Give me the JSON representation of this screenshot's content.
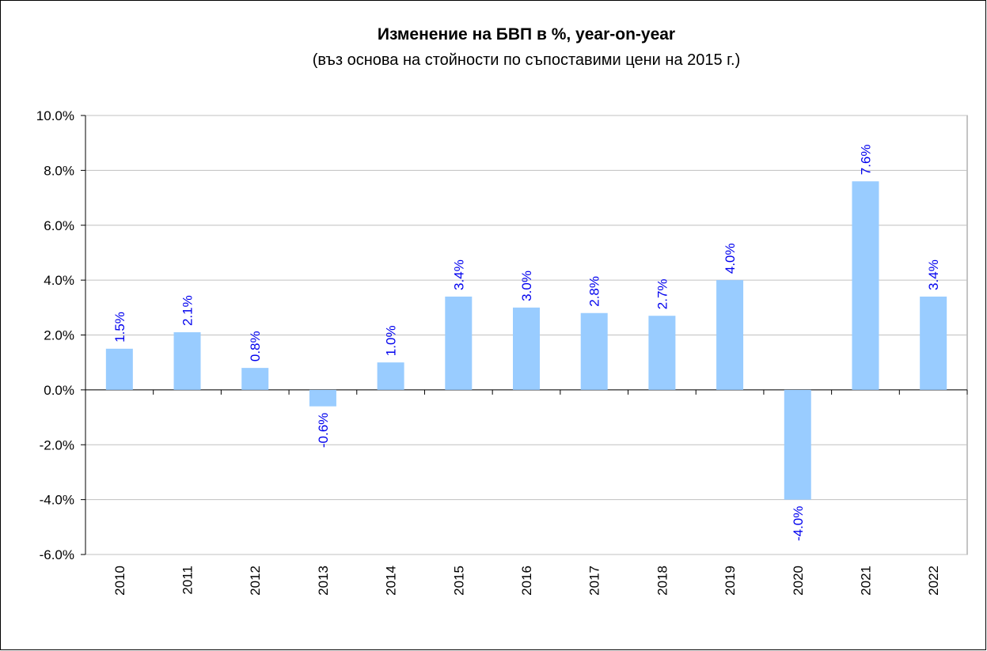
{
  "chart_data": {
    "type": "bar",
    "title": "Изменение на БВП в %, year-on-year",
    "subtitle": "(въз основа на стойности по съпоставими цени на 2015 г.)",
    "categories": [
      "2010",
      "2011",
      "2012",
      "2013",
      "2014",
      "2015",
      "2016",
      "2017",
      "2018",
      "2019",
      "2020",
      "2021",
      "2022"
    ],
    "values": [
      1.5,
      2.1,
      0.8,
      -0.6,
      1.0,
      3.4,
      3.0,
      2.8,
      2.7,
      4.0,
      -4.0,
      7.6,
      3.4
    ],
    "value_labels": [
      "1.5%",
      "2.1%",
      "0.8%",
      "-0.6%",
      "1.0%",
      "3.4%",
      "3.0%",
      "2.8%",
      "2.7%",
      "4.0%",
      "-4.0%",
      "7.6%",
      "3.4%"
    ],
    "color": "#99ccff",
    "ylim": [
      -6,
      10
    ],
    "yticks": [
      {
        "value": -6,
        "label": "-6.0%"
      },
      {
        "value": -4,
        "label": "-4.0%"
      },
      {
        "value": -2,
        "label": "-2.0%"
      },
      {
        "value": 0,
        "label": "0.0%"
      },
      {
        "value": 2,
        "label": "2.0%"
      },
      {
        "value": 4,
        "label": "4.0%"
      },
      {
        "value": 6,
        "label": "6.0%"
      },
      {
        "value": 8,
        "label": "8.0%"
      },
      {
        "value": 10,
        "label": "10.0%"
      }
    ],
    "grid": true
  }
}
